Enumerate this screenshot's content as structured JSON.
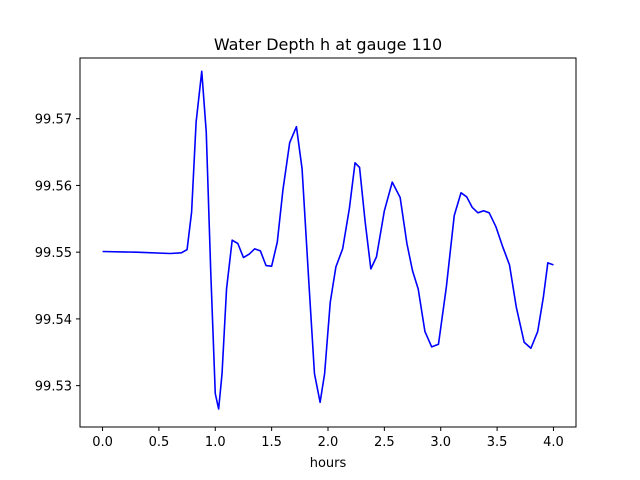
{
  "chart_data": {
    "type": "line",
    "title": "Water Depth h at gauge 110",
    "xlabel": "hours",
    "ylabel": "",
    "xlim": [
      -0.2,
      4.2
    ],
    "ylim": [
      99.5238,
      99.5791
    ],
    "xticks": [
      0.0,
      0.5,
      1.0,
      1.5,
      2.0,
      2.5,
      3.0,
      3.5,
      4.0
    ],
    "xtick_labels": [
      "0.0",
      "0.5",
      "1.0",
      "1.5",
      "2.0",
      "2.5",
      "3.0",
      "3.5",
      "4.0"
    ],
    "yticks": [
      99.53,
      99.54,
      99.55,
      99.56,
      99.57
    ],
    "ytick_labels": [
      "99.53",
      "99.54",
      "99.55",
      "99.56",
      "99.57"
    ],
    "grid": false,
    "line_color": "#0000ff",
    "series": [
      {
        "x": [
          0.0,
          0.3,
          0.6,
          0.7,
          0.75,
          0.79,
          0.83,
          0.88,
          0.92,
          0.96,
          1.0,
          1.03,
          1.06,
          1.1,
          1.15,
          1.2,
          1.25,
          1.3,
          1.35,
          1.4,
          1.45,
          1.5,
          1.55,
          1.6,
          1.66,
          1.72,
          1.77,
          1.83,
          1.88,
          1.93,
          1.97,
          2.02,
          2.07,
          2.13,
          2.19,
          2.24,
          2.28,
          2.33,
          2.38,
          2.43,
          2.5,
          2.57,
          2.64,
          2.7,
          2.75,
          2.8,
          2.86,
          2.92,
          2.98,
          3.05,
          3.12,
          3.18,
          3.23,
          3.28,
          3.33,
          3.38,
          3.43,
          3.49,
          3.55,
          3.61,
          3.67,
          3.74,
          3.8,
          3.86,
          3.91,
          3.95,
          4.0
        ],
        "y": [
          99.5501,
          99.55,
          99.5498,
          99.5499,
          99.5504,
          99.556,
          99.5695,
          99.5771,
          99.568,
          99.547,
          99.5288,
          99.5265,
          99.5318,
          99.5445,
          99.5518,
          99.5513,
          99.5492,
          99.5497,
          99.5505,
          99.5502,
          99.548,
          99.5479,
          99.5515,
          99.5593,
          99.5664,
          99.5688,
          99.5625,
          99.5455,
          99.5318,
          99.5275,
          99.5318,
          99.5425,
          99.5478,
          99.5505,
          99.5566,
          99.5634,
          99.5627,
          99.5545,
          99.5475,
          99.5493,
          99.5562,
          99.5605,
          99.5582,
          99.5513,
          99.5472,
          99.5445,
          99.5381,
          99.5358,
          99.5362,
          99.5448,
          99.5555,
          99.5589,
          99.5583,
          99.5567,
          99.5559,
          99.5562,
          99.5559,
          99.5538,
          99.5508,
          99.5481,
          99.5418,
          99.5365,
          99.5356,
          99.5381,
          99.5432,
          99.5484,
          99.5481
        ]
      }
    ]
  }
}
